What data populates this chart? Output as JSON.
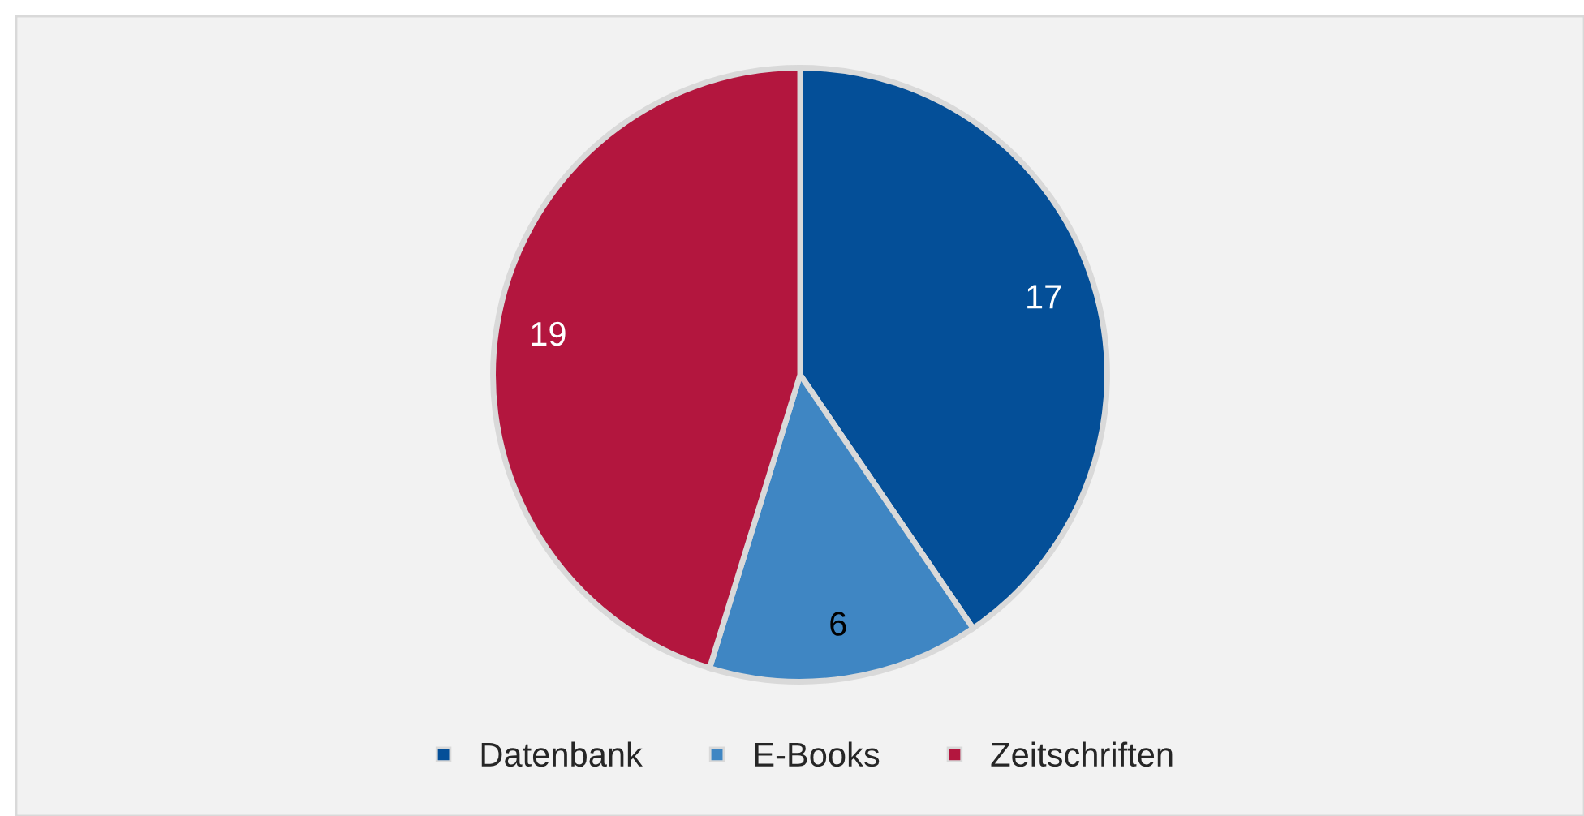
{
  "chart_data": {
    "type": "pie",
    "categories": [
      "Datenbank",
      "E-Books",
      "Zeitschriften"
    ],
    "values": [
      17,
      6,
      19
    ],
    "colors": [
      "#044f98",
      "#3f86c3",
      "#b3163e"
    ],
    "data_labels": true,
    "legend": "bottom"
  }
}
